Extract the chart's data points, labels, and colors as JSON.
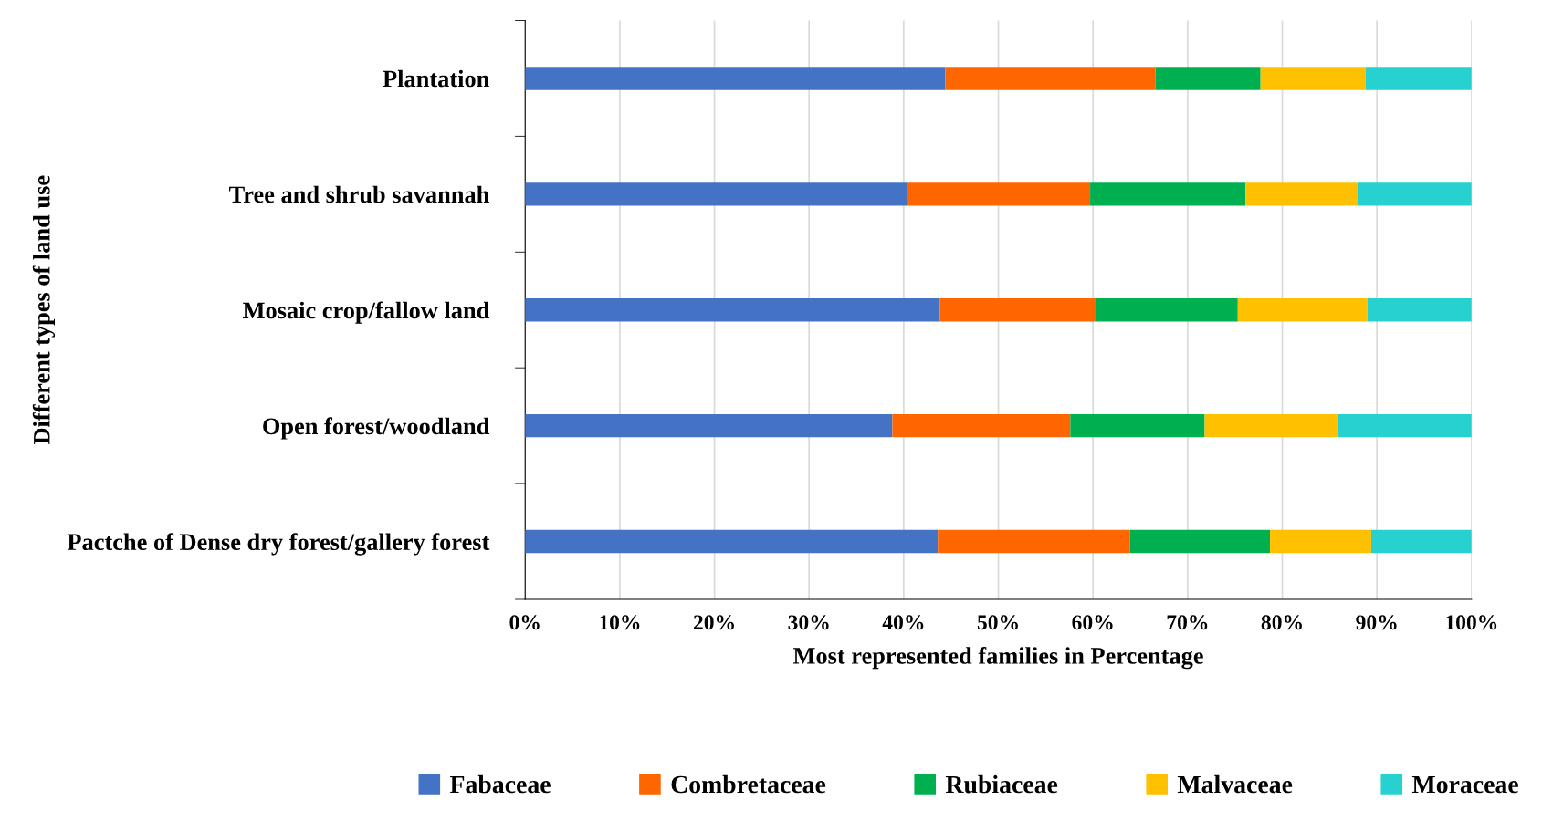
{
  "chart_data": {
    "type": "bar",
    "orientation": "horizontal",
    "stacked": true,
    "xlabel": "Most represented families in Percentage",
    "ylabel": "Different types of land use",
    "categories": [
      "Plantation",
      "Tree and shrub savannah",
      "Mosaic crop/fallow land",
      "Open forest/woodland",
      "Pactche of Dense dry forest/gallery forest"
    ],
    "series": [
      {
        "name": "Fabaceae",
        "color": "#4472c4",
        "values": [
          44.4,
          40.3,
          43.8,
          38.8,
          43.6
        ]
      },
      {
        "name": "Combretaceae",
        "color": "#ff6600",
        "values": [
          22.2,
          19.4,
          16.5,
          18.8,
          20.3
        ]
      },
      {
        "name": "Rubiaceae",
        "color": "#00b050",
        "values": [
          11.1,
          16.4,
          15.0,
          14.2,
          14.8
        ]
      },
      {
        "name": "Malvaceae",
        "color": "#ffc000",
        "values": [
          11.1,
          11.9,
          13.7,
          14.1,
          10.7
        ]
      },
      {
        "name": "Moraceae",
        "color": "#27d1cf",
        "values": [
          11.2,
          12.0,
          11.0,
          14.1,
          10.6
        ]
      }
    ],
    "xlim": [
      0,
      100
    ],
    "xticks": [
      {
        "value": 0,
        "label": "0%"
      },
      {
        "value": 10,
        "label": "10%"
      },
      {
        "value": 20,
        "label": "20%"
      },
      {
        "value": 30,
        "label": "30%"
      },
      {
        "value": 40,
        "label": "40%"
      },
      {
        "value": 50,
        "label": "50%"
      },
      {
        "value": 60,
        "label": "60%"
      },
      {
        "value": 70,
        "label": "70%"
      },
      {
        "value": 80,
        "label": "80%"
      },
      {
        "value": 90,
        "label": "90%"
      },
      {
        "value": 100,
        "label": "100%"
      }
    ],
    "grid": "x",
    "legend": "bottom"
  }
}
